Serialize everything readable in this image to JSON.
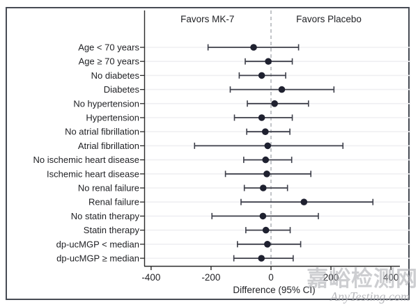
{
  "figure": {
    "favors_left": "Favors MK-7",
    "favors_right": "Favors Placebo",
    "xlabel": "Difference (95% CI)"
  },
  "watermark": {
    "line1": "嘉峪检测网",
    "line2": "AnyTesting.com"
  },
  "colors": {
    "marker": "#1f2130",
    "ci_line": "#3c3e49",
    "grid": "#efeff2",
    "axis": "#2a2a2a",
    "zero_line": "#b3b6bb",
    "border": "#474b54",
    "text": "#212226"
  },
  "chart_data": {
    "type": "scatter",
    "subtype": "forest",
    "title": "",
    "xlabel": "Difference (95% CI)",
    "xlim": [
      -423,
      430
    ],
    "xticks": [
      -400,
      -200,
      0,
      200,
      400
    ],
    "zero_line": 0,
    "grid": "horizontal",
    "annotations": [
      {
        "text": "Favors MK-7",
        "x": -212
      },
      {
        "text": "Favors Placebo",
        "x": 193
      }
    ],
    "rows": [
      {
        "label": "Age < 70 years",
        "estimate": -58,
        "ci_low": -210,
        "ci_high": 92
      },
      {
        "label": "Age ≥ 70 years",
        "estimate": -9,
        "ci_low": -86,
        "ci_high": 71
      },
      {
        "label": "No diabetes",
        "estimate": -31,
        "ci_low": -106,
        "ci_high": 49
      },
      {
        "label": "Diabetes",
        "estimate": 36,
        "ci_low": -136,
        "ci_high": 210
      },
      {
        "label": "No hypertension",
        "estimate": 12,
        "ci_low": -79,
        "ci_high": 125
      },
      {
        "label": "Hypertension",
        "estimate": -31,
        "ci_low": -122,
        "ci_high": 71
      },
      {
        "label": "No atrial fibrillation",
        "estimate": -19,
        "ci_low": -81,
        "ci_high": 63
      },
      {
        "label": "Atrial fibrillation",
        "estimate": -11,
        "ci_low": -255,
        "ci_high": 240
      },
      {
        "label": "No ischemic heart disease",
        "estimate": -18,
        "ci_low": -91,
        "ci_high": 69
      },
      {
        "label": "Ischemic heart disease",
        "estimate": -14,
        "ci_low": -152,
        "ci_high": 133
      },
      {
        "label": "No renal failure",
        "estimate": -26,
        "ci_low": -89,
        "ci_high": 55
      },
      {
        "label": "Renal failure",
        "estimate": 110,
        "ci_low": -100,
        "ci_high": 340
      },
      {
        "label": "No statin therapy",
        "estimate": -27,
        "ci_low": -197,
        "ci_high": 158
      },
      {
        "label": "Statin therapy",
        "estimate": -17,
        "ci_low": -84,
        "ci_high": 64
      },
      {
        "label": "dp-ucMGP < median",
        "estimate": -12,
        "ci_low": -112,
        "ci_high": 99
      },
      {
        "label": "dp-ucMGP ≥ median",
        "estimate": -32,
        "ci_low": -124,
        "ci_high": 74
      }
    ]
  }
}
